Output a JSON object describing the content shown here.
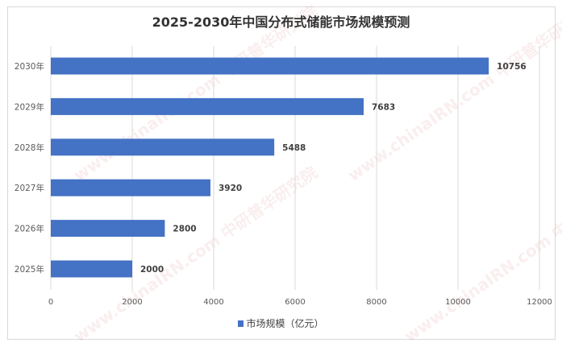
{
  "chart_data": {
    "type": "bar",
    "orientation": "horizontal",
    "title": "2025-2030年中国分布式储能市场规模预测",
    "categories": [
      "2030年",
      "2029年",
      "2028年",
      "2027年",
      "2026年",
      "2025年"
    ],
    "series": [
      {
        "name": "市场规模（亿元）",
        "values": [
          10756,
          7683,
          5488,
          3920,
          2800,
          2000
        ],
        "color": "#4472c4"
      }
    ],
    "xticks": [
      0,
      2000,
      4000,
      6000,
      8000,
      10000,
      12000
    ],
    "xlim": [
      0,
      12000
    ],
    "grid": true,
    "legend": "bottom",
    "data_labels": true
  }
}
